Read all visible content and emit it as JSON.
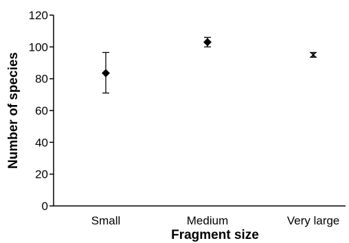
{
  "chart_data": {
    "type": "scatter",
    "title": "",
    "xlabel": "Fragment size",
    "ylabel": "Number of species",
    "categories": [
      "Small",
      "Medium",
      "Very large"
    ],
    "ylim": [
      0,
      120
    ],
    "yticks": [
      0,
      20,
      40,
      60,
      80,
      100,
      120
    ],
    "grid": false,
    "legend": "none",
    "series": [
      {
        "values": [
          83.5,
          103,
          95
        ],
        "error_low": [
          71,
          100,
          93.5
        ],
        "error_high": [
          96.5,
          106,
          96.5
        ],
        "markers": [
          "diamond",
          "diamond",
          "x"
        ]
      }
    ],
    "colors": {
      "marker": "#000000",
      "axis": "#000000"
    }
  }
}
